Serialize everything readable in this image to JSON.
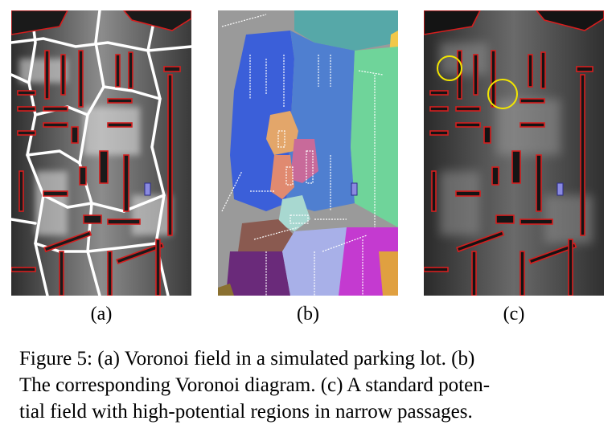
{
  "figure": {
    "subfigure_labels": {
      "a": "(a)",
      "b": "(b)",
      "c": "(c)"
    },
    "caption_lines": [
      "Figure 5:  (a) Voronoi field in a simulated parking lot.  (b)",
      "The corresponding Voronoi diagram.  (c) A standard poten-",
      "tial field with high-potential regions in narrow passages."
    ]
  },
  "colors": {
    "obstacle_red": "#d41e1e",
    "voronoi_white": "#ffffff",
    "field_dark": "#2a2a2a",
    "circle_yellow": "#f2e600",
    "vehicle_blue": "#4040c0",
    "region_blue": "#3b5fd9",
    "region_teal": "#56a8a8",
    "region_green": "#6fd49a",
    "region_orange": "#e3a66a",
    "region_pink": "#c86a9a",
    "region_purple": "#6a2a7a",
    "region_magenta": "#c43ad0",
    "region_brown": "#8a5a50",
    "region_lavender": "#a8b0e8",
    "region_gray": "#9a9a9a"
  }
}
